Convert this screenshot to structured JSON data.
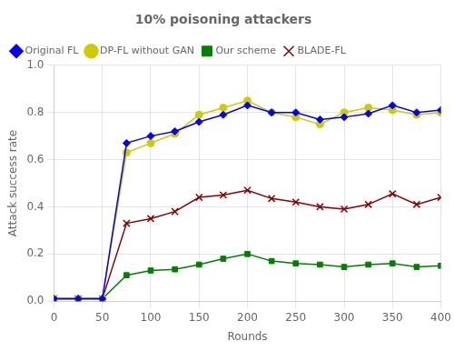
{
  "chart_data": {
    "type": "line",
    "title": "10% poisoning attackers",
    "xlabel": "Rounds",
    "ylabel": "Attack success rate",
    "x": [
      0,
      25,
      50,
      75,
      100,
      125,
      150,
      175,
      200,
      225,
      250,
      275,
      300,
      325,
      350,
      375,
      400
    ],
    "series": [
      {
        "name": "Original FL",
        "color": "#0000ff",
        "marker": "diamond",
        "values": [
          0.01,
          0.01,
          0.01,
          0.67,
          0.7,
          0.72,
          0.76,
          0.79,
          0.83,
          0.8,
          0.8,
          0.77,
          0.78,
          0.795,
          0.83,
          0.8,
          0.81
        ]
      },
      {
        "name": "DP-FL without GAN",
        "color": "#cccc00",
        "marker": "circle",
        "values": [
          0.01,
          0.01,
          0.01,
          0.63,
          0.67,
          0.71,
          0.79,
          0.82,
          0.85,
          0.8,
          0.78,
          0.75,
          0.8,
          0.82,
          0.81,
          0.79,
          0.8
        ]
      },
      {
        "name": "Our scheme",
        "color": "#008000",
        "marker": "square",
        "values": [
          0.01,
          0.01,
          0.01,
          0.11,
          0.13,
          0.135,
          0.155,
          0.18,
          0.2,
          0.17,
          0.16,
          0.155,
          0.145,
          0.155,
          0.16,
          0.145,
          0.15
        ]
      },
      {
        "name": "BLADE-FL",
        "color": "#8b0000",
        "marker": "x",
        "values": [
          0.01,
          0.01,
          0.01,
          0.33,
          0.35,
          0.38,
          0.44,
          0.45,
          0.47,
          0.435,
          0.42,
          0.4,
          0.39,
          0.41,
          0.455,
          0.41,
          0.44
        ]
      }
    ],
    "xlim": [
      0,
      400
    ],
    "xticks": [
      0,
      50,
      100,
      150,
      200,
      250,
      300,
      350,
      400
    ],
    "ylim": [
      0.0,
      1.0
    ],
    "yticks": [
      {
        "value": 0.0,
        "label": "0.0"
      },
      0.2,
      0.4,
      0.6,
      0.8,
      {
        "value": 1.0,
        "label": "1.0"
      }
    ],
    "grid": true,
    "legend": "upper left"
  }
}
